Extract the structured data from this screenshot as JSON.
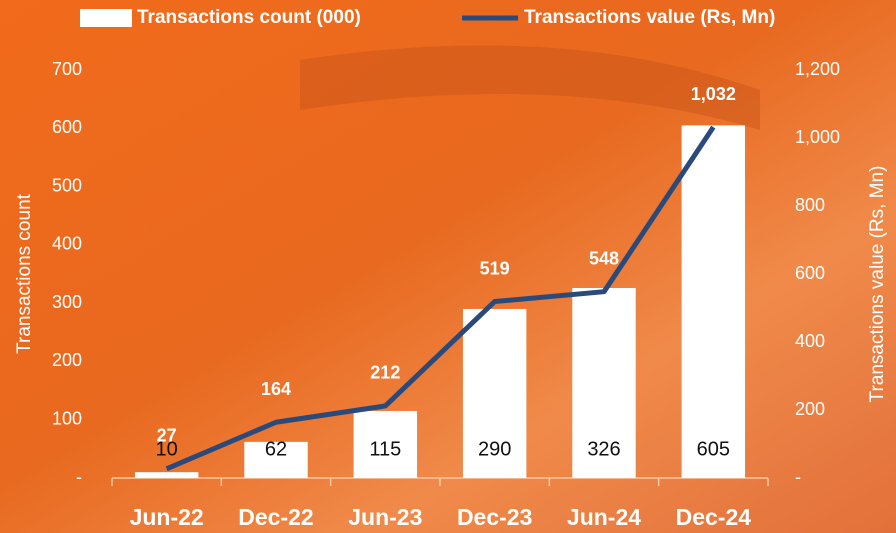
{
  "chart_data": {
    "type": "bar_line",
    "categories": [
      "Jun-22",
      "Dec-22",
      "Jun-23",
      "Dec-23",
      "Jun-24",
      "Dec-24"
    ],
    "series": [
      {
        "name": "Transactions count (000)",
        "type": "bar",
        "color": "#ffffff",
        "values": [
          10,
          62,
          115,
          290,
          326,
          605
        ]
      },
      {
        "name": "Transactions value (Rs, Mn)",
        "type": "line",
        "axis": "y2",
        "color": "#2b4a7c",
        "values": [
          27,
          164,
          212,
          519,
          548,
          1032
        ],
        "value_labels": [
          "27",
          "164",
          "212",
          "519",
          "548",
          "1,032"
        ]
      }
    ],
    "ylabel": "Transactions count",
    "y2label": "Transactions value (Rs, Mn)",
    "ylim": [
      0,
      700
    ],
    "yticks": [
      {
        "value": 0,
        "label": "-"
      },
      100,
      200,
      300,
      400,
      500,
      600,
      700
    ],
    "y2lim": [
      0,
      1200
    ],
    "y2ticks": [
      {
        "value": 0,
        "label": "-"
      },
      200,
      400,
      600,
      800,
      {
        "value": 1000,
        "label": "1,000"
      },
      {
        "value": 1200,
        "label": "1,200"
      }
    ],
    "legend": "top"
  }
}
